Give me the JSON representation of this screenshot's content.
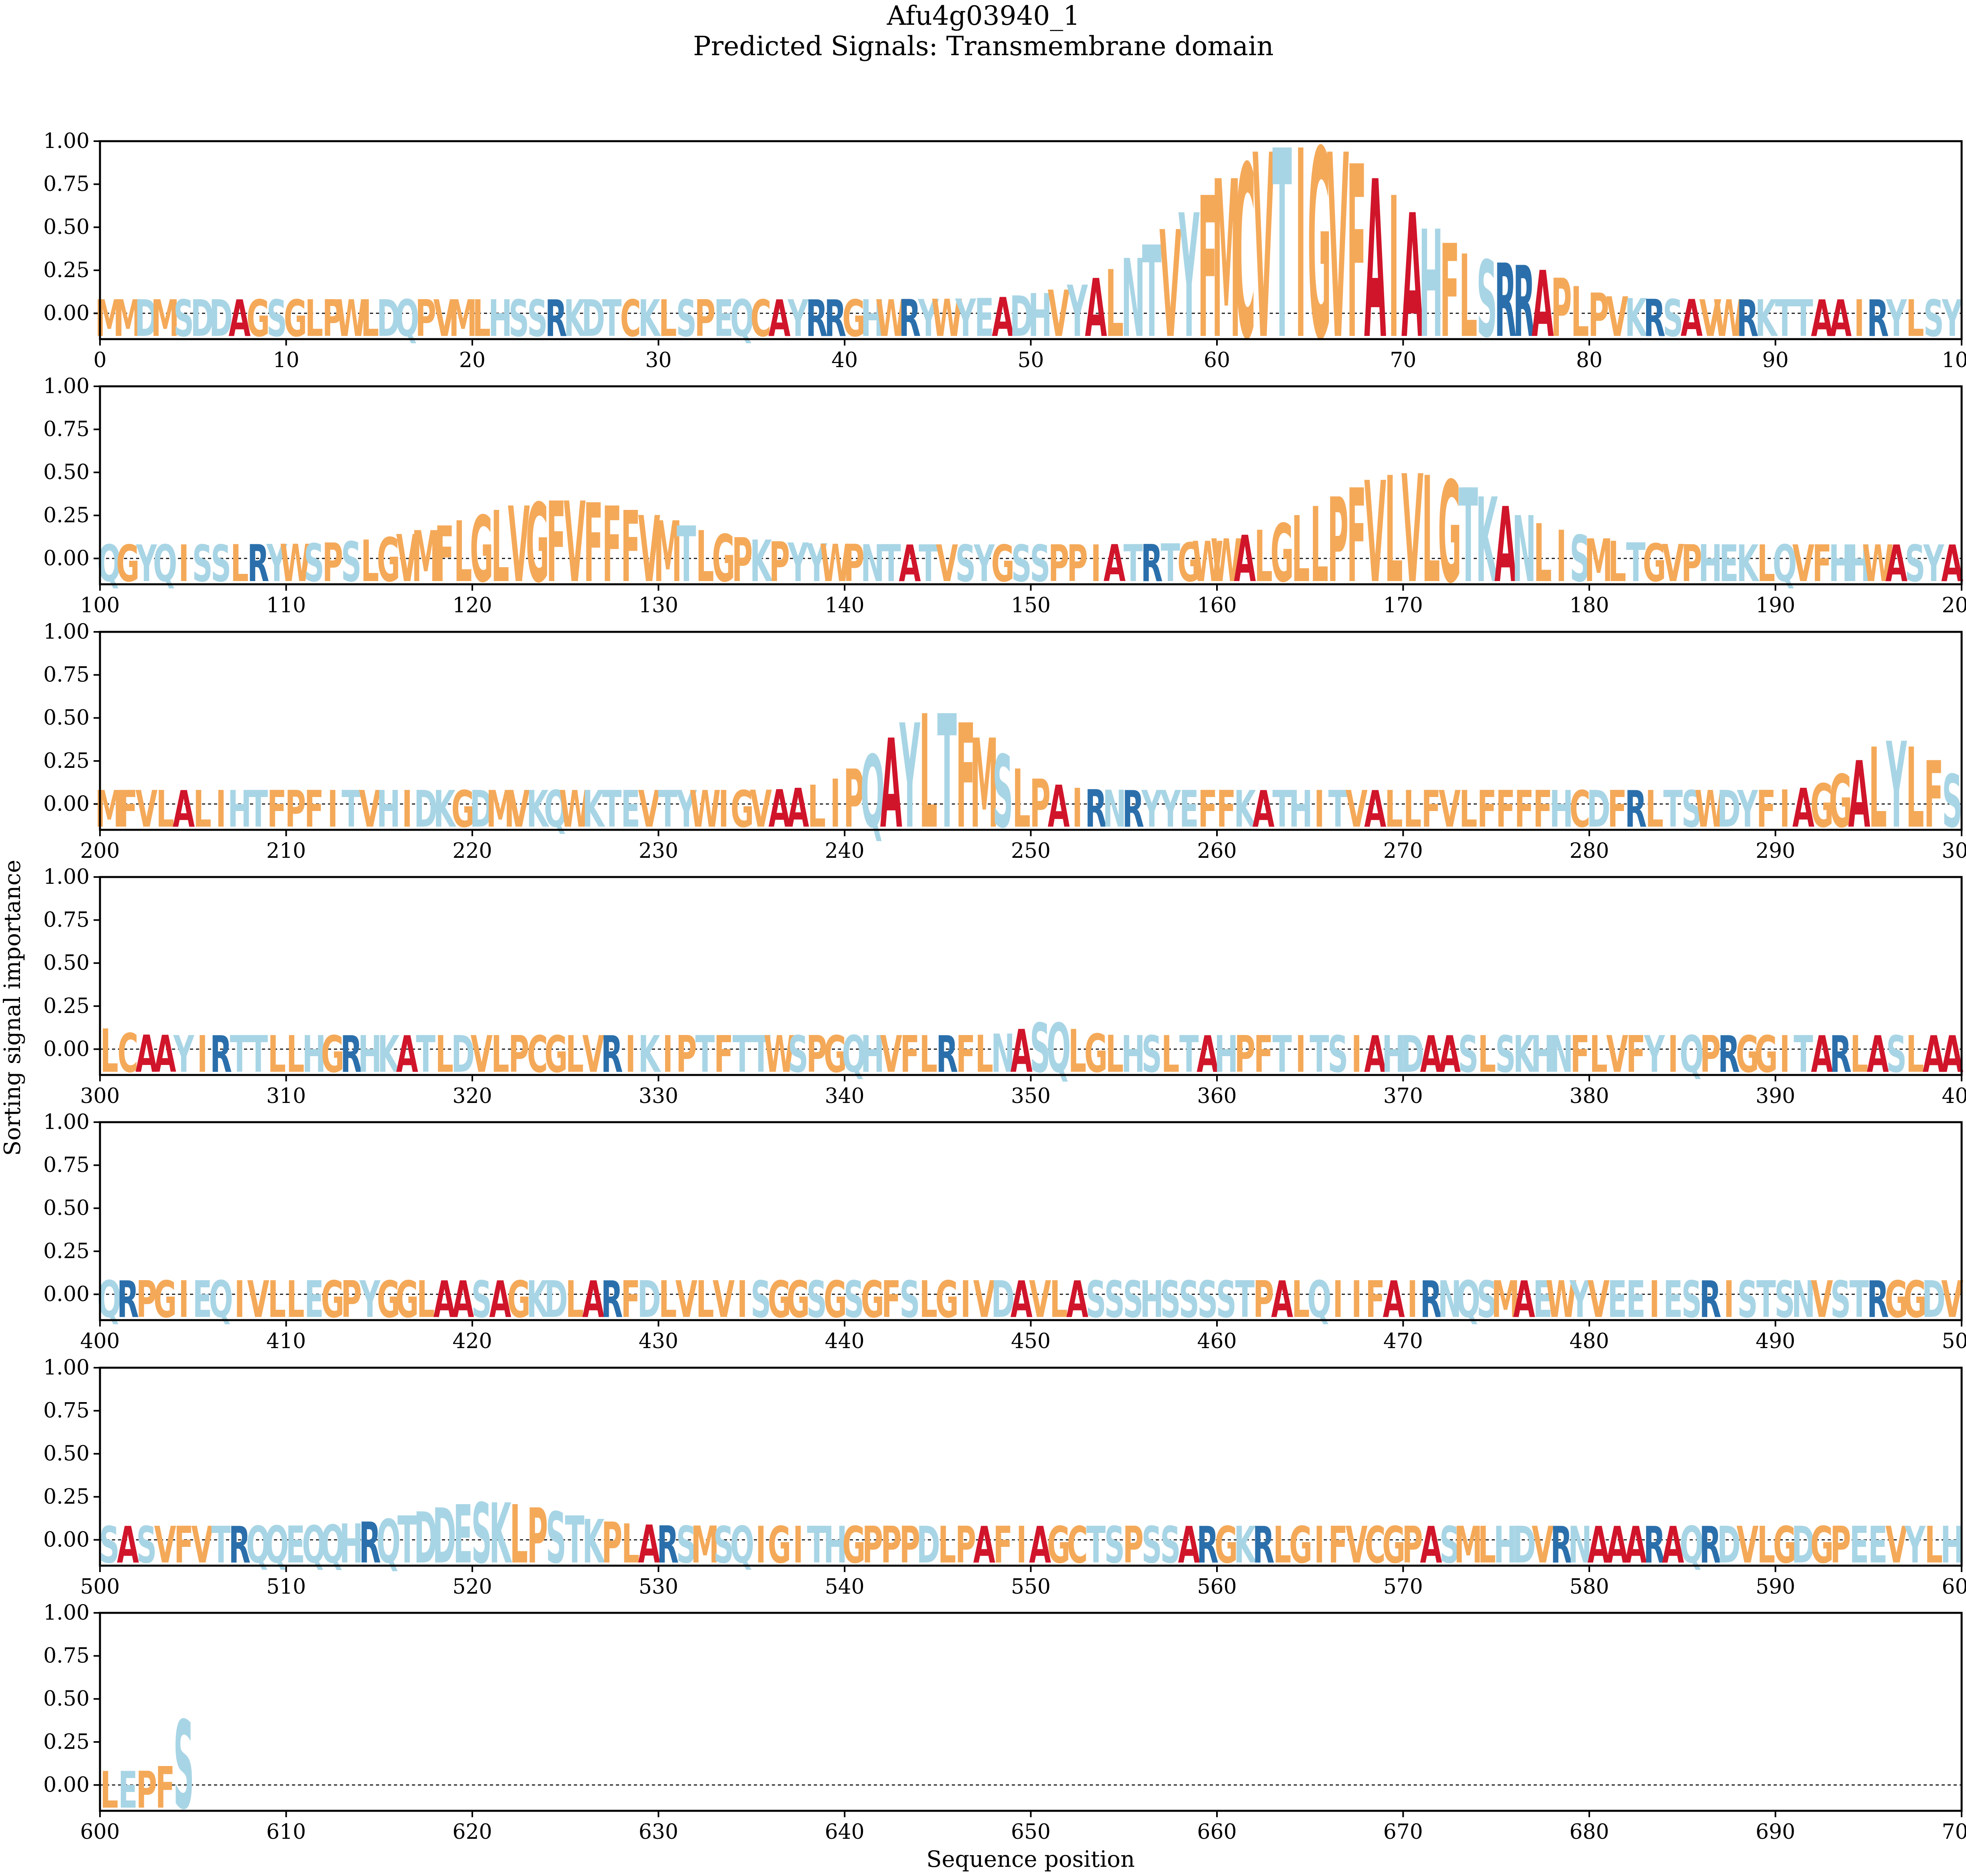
{
  "chart_data": {
    "type": "sequence-logo",
    "title": "Afu4g03940_1",
    "subtitle": "Predicted Signals: Transmembrane domain",
    "xlabel": "Sequence position",
    "ylabel": "Sorting signal importance",
    "ylim": [
      -0.15,
      1.0
    ],
    "yticks": [
      "1.00",
      "0.75",
      "0.50",
      "0.25",
      "0.00"
    ],
    "ytick_values": [
      1.0,
      0.75,
      0.5,
      0.25,
      0.0
    ],
    "panels": [
      {
        "start": 0,
        "end": 100,
        "xticks": [
          "0",
          "10",
          "20",
          "30",
          "40",
          "50",
          "60",
          "70",
          "80",
          "90",
          "100"
        ]
      },
      {
        "start": 100,
        "end": 200,
        "xticks": [
          "100",
          "110",
          "120",
          "130",
          "140",
          "150",
          "160",
          "170",
          "180",
          "190",
          "200"
        ]
      },
      {
        "start": 200,
        "end": 300,
        "xticks": [
          "200",
          "210",
          "220",
          "230",
          "240",
          "250",
          "260",
          "270",
          "280",
          "290",
          "300"
        ]
      },
      {
        "start": 300,
        "end": 400,
        "xticks": [
          "300",
          "310",
          "320",
          "330",
          "340",
          "350",
          "360",
          "370",
          "380",
          "390",
          "400"
        ]
      },
      {
        "start": 400,
        "end": 500,
        "xticks": [
          "400",
          "410",
          "420",
          "430",
          "440",
          "450",
          "460",
          "470",
          "480",
          "490",
          "500"
        ]
      },
      {
        "start": 500,
        "end": 600,
        "xticks": [
          "500",
          "510",
          "520",
          "530",
          "540",
          "550",
          "560",
          "570",
          "580",
          "590",
          "600"
        ]
      },
      {
        "start": 600,
        "end": 700,
        "xticks": [
          "600",
          "610",
          "620",
          "630",
          "640",
          "650",
          "660",
          "670",
          "680",
          "690",
          "700"
        ]
      }
    ],
    "sequence": "MMDMSDDAGSGLPWLDQPVMLHSSRKDTCKLSPEQCAYRRGHWRYWYEADHVYALNTVYFMCVTIGVFAIAHFLSRRAPLPVKRSAVWRKTTAAIRYLSYQGYQISSLRYWSPSLGVMFLGLVGFVFFFVMTLGPKPYYWPNTATVSYGSSPPIATRTGWWALGLLPFVLVLGTKANLISMLTGVPHEKLQVFHHWASYAMFVLALIHTFPFITVHIDKGDMVKQWKTEVTYWIGVAALIPQAYLTFMSLPAIRNRYYEFFKATHITVALLFVLFFFFHCDFRLTSWDYFIAGGALYLFSLCAAYIRTTLLHGRHKATLDVLPCGLVRIKIPTFTTWSPGQHVFLRFLNASQLGLHSLTAHPFTITSIAHDAASLSKHNFLVFYIQPRGGITARLASLAAQRPGIEQIVLLEGPYGGLAASAGKDLARFDLVLVISGGSGSGFSLGIVDAVLASSSHSSSSTPALQIIFAIRNQSMAEWYVEEIESRISTSNVSTRGGDVSASVFVTRQQEQQHRQTDDESKLPSTKPLARSMSQIGITHGPPPDLPAFIAGCTSPSSARGKRLGIFVCGPASMLHDVRNAAARAQRDVLGDGPEEVYLHLEPFS",
    "importance_peaks": [
      {
        "center": 64.0,
        "width": 5.5,
        "height": 0.93
      },
      {
        "center": 76.5,
        "width": 2.0,
        "height": 0.12
      },
      {
        "center": 124.5,
        "width": 5.0,
        "height": 0.26
      },
      {
        "center": 170.0,
        "width": 4.5,
        "height": 0.42
      },
      {
        "center": 244.5,
        "width": 2.8,
        "height": 0.46
      },
      {
        "center": 296.0,
        "width": 2.0,
        "height": 0.29
      },
      {
        "center": 350.5,
        "width": 1.2,
        "height": 0.08
      },
      {
        "center": 520.5,
        "width": 3.5,
        "height": 0.14
      },
      {
        "center": 605.0,
        "width": 0.8,
        "height": 0.66
      }
    ],
    "residue_colors": {
      "hydrophobic": "#f4a959",
      "polar": "#a8d5e5",
      "basic": "#2a6fab",
      "alanine": "#d0152b"
    }
  }
}
